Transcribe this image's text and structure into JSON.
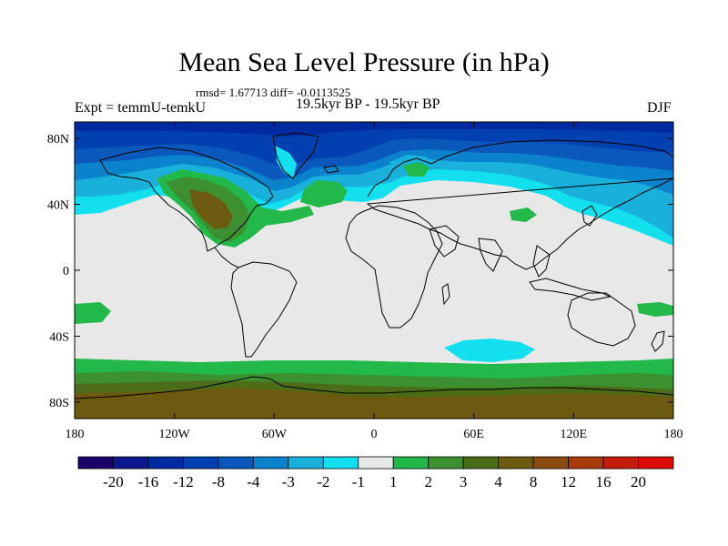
{
  "title": "Mean Sea Level Pressure (in hPa)",
  "stats_text": "rmsd= 1.67713 diff= -0.0113525",
  "experiment_label": "Expt = temmU-temkU",
  "period_label": "19.5kyr BP - 19.5kyr BP",
  "season_label": "DJF",
  "lat_ticks": [
    "80N",
    "40N",
    "0",
    "40S",
    "80S"
  ],
  "lon_ticks": [
    "180",
    "120W",
    "60W",
    "0",
    "60E",
    "120E",
    "180"
  ],
  "colorbar": {
    "colors": [
      "#1a0068",
      "#0c1790",
      "#002aa0",
      "#0040b0",
      "#0a58bc",
      "#0a82cc",
      "#1ab0dc",
      "#12e0ee",
      "#e8e8e8",
      "#22b84a",
      "#3c9030",
      "#4c6c18",
      "#6c5a10",
      "#8a4a10",
      "#a83a0a",
      "#c41c0a",
      "#dd0a06"
    ],
    "labels": [
      "-20",
      "-16",
      "-12",
      "-8",
      "-4",
      "-3",
      "-2",
      "-1",
      "1",
      "2",
      "3",
      "4",
      "8",
      "12",
      "16",
      "20"
    ]
  }
}
